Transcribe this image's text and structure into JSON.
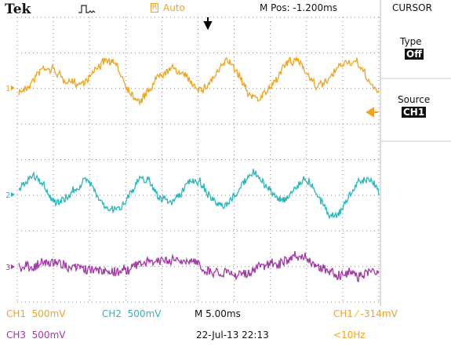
{
  "header": {
    "brand": "Tek",
    "trigger_badge": "R",
    "trigger_mode": "Auto",
    "position": "M Pos: -1.200ms"
  },
  "menu": {
    "title": "CURSOR",
    "items": [
      {
        "label": "Type",
        "value": "Off"
      },
      {
        "label": "Source",
        "value": "CH1"
      }
    ]
  },
  "channels": [
    {
      "marker": "1",
      "readout": "CH1  500mV",
      "color": "#f2a31f"
    },
    {
      "marker": "2",
      "readout": "CH2  500mV",
      "color": "#2cb5bb"
    },
    {
      "marker": "3",
      "readout": "CH3  500mV",
      "color": "#a23aa6"
    }
  ],
  "status": {
    "timebase": "M 5.00ms",
    "datetime": "22-Jul-13 22:13",
    "trigger": "CH1 ⁄ -314mV",
    "frequency": "<10Hz"
  }
}
